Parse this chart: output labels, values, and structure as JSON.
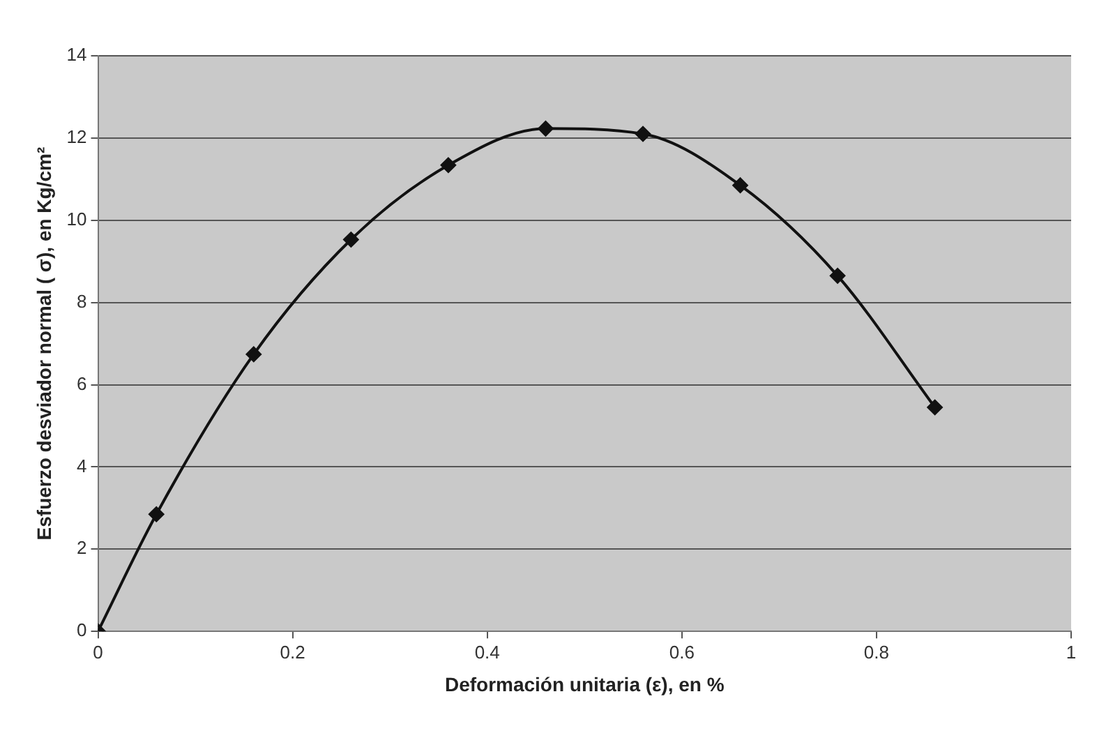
{
  "chart_data": {
    "type": "line",
    "xlabel": "Deformación unitaria (ε), en %",
    "ylabel": "Esfuerzo desviador normal ( σ), en Kg/cm²",
    "x": [
      0,
      0.06,
      0.16,
      0.26,
      0.36,
      0.46,
      0.56,
      0.66,
      0.76,
      0.86
    ],
    "series": [
      {
        "color": "#111111",
        "values": [
          0,
          2.85,
          6.74,
          9.53,
          11.34,
          12.23,
          12.1,
          10.85,
          8.65,
          5.45
        ]
      }
    ],
    "xlim": [
      0,
      1
    ],
    "xticks": [
      0,
      0.2,
      0.4,
      0.6,
      0.8,
      1
    ],
    "ylim": [
      0,
      14
    ],
    "yticks": [
      0,
      2,
      4,
      6,
      8,
      10,
      12,
      14
    ],
    "grid": "y",
    "legend": false,
    "marker": "diamond",
    "line_style": "solid"
  }
}
